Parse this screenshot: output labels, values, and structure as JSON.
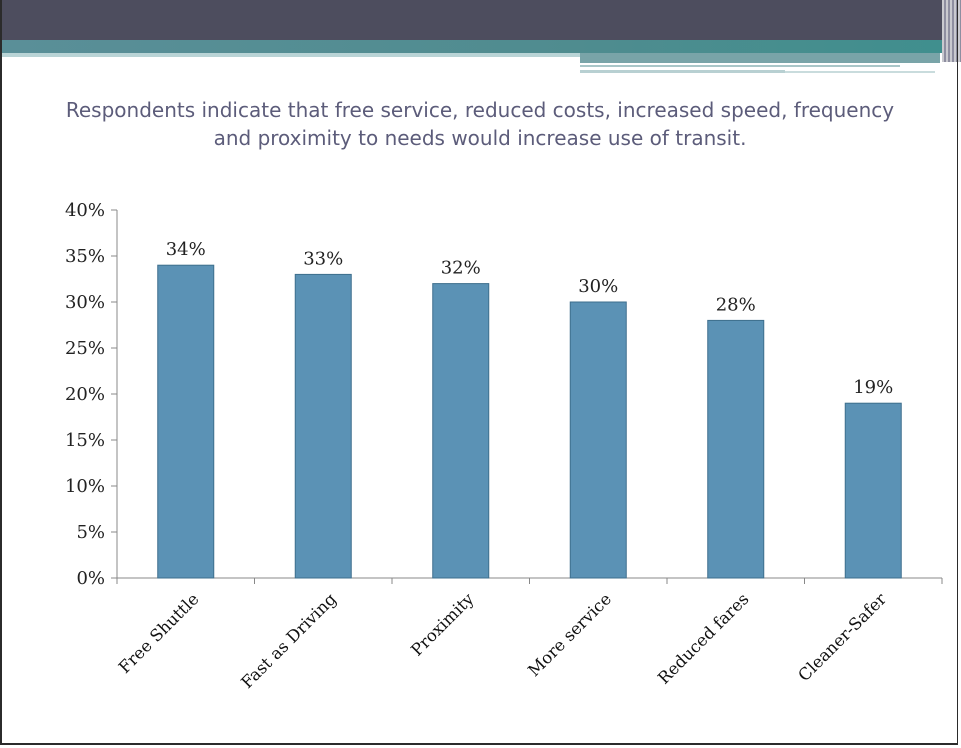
{
  "slide": {
    "subtitle": "Respondents indicate that free service, reduced costs, increased speed, frequency and proximity to needs would increase use of transit."
  },
  "chart_data": {
    "type": "bar",
    "categories": [
      "Free Shuttle",
      "Fast as Driving",
      "Proximity",
      "More service",
      "Reduced fares",
      "Cleaner-Safer"
    ],
    "values": [
      34,
      33,
      32,
      30,
      28,
      19
    ],
    "value_labels": [
      "34%",
      "33%",
      "32%",
      "30%",
      "28%",
      "19%"
    ],
    "title": "",
    "xlabel": "",
    "ylabel": "",
    "ylim": [
      0,
      40
    ],
    "yticks": [
      0,
      5,
      10,
      15,
      20,
      25,
      30,
      35,
      40
    ],
    "ytick_labels": [
      "0%",
      "5%",
      "10%",
      "15%",
      "20%",
      "25%",
      "30%",
      "35%",
      "40%"
    ],
    "grid": false,
    "legend": "none",
    "colors": {
      "bar": "#5b92b5",
      "bar_edge": "#3e6f8d",
      "axis": "#888888"
    }
  }
}
